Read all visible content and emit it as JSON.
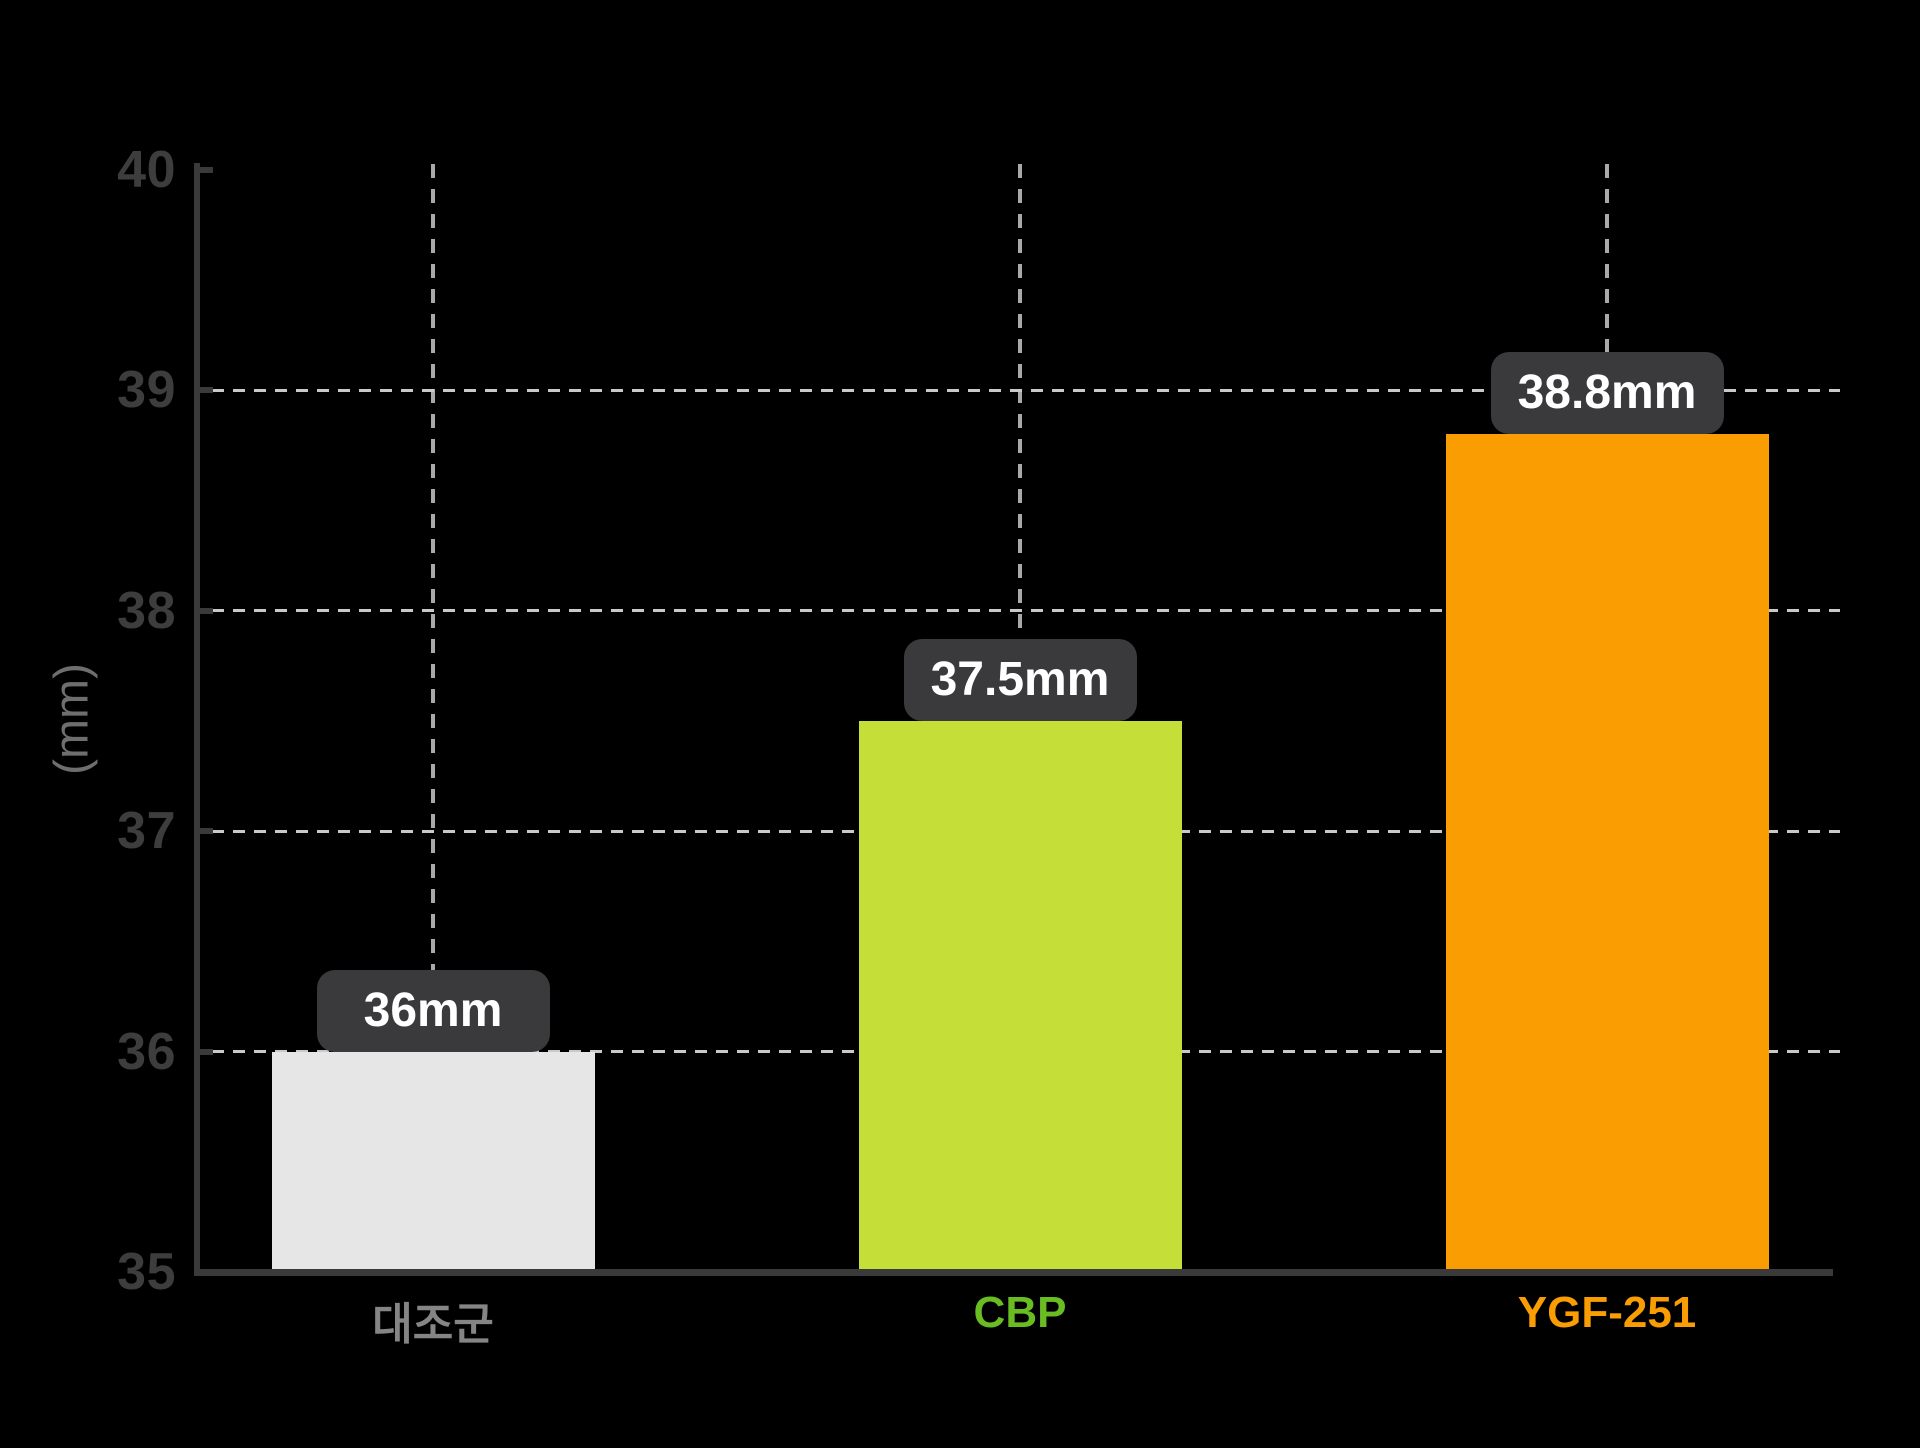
{
  "chart_data": {
    "type": "bar",
    "title": "",
    "ylabel": "(mm)",
    "xlabel": "",
    "ylim": [
      35,
      40
    ],
    "yticks": [
      35,
      36,
      37,
      38,
      39,
      40
    ],
    "grid": "dashed horizontal gridlines at 36-39 and dashed vertical gridline at each category center",
    "legend_position": "none",
    "categories": [
      "대조군",
      "CBP",
      "YGF-251"
    ],
    "values": [
      36,
      37.5,
      38.8
    ],
    "value_labels": [
      "36mm",
      "37.5mm",
      "38.8mm"
    ],
    "bar_colors": [
      "#e6e6e6",
      "#c6de38",
      "#fa9d02"
    ],
    "category_label_colors": [
      "#858585",
      "#69bd22",
      "#fa9d02"
    ]
  },
  "colors": {
    "background": "#000000",
    "axis": "#3a3a3a",
    "tick_label": "#3d3d3d",
    "axis_unit_label": "#6e6e6e",
    "gridline_horizontal": "#c9c9c9",
    "gridline_vertical": "#a9a9a9",
    "value_box_bg": "#3a3a3c",
    "value_box_text": "#ffffff"
  }
}
